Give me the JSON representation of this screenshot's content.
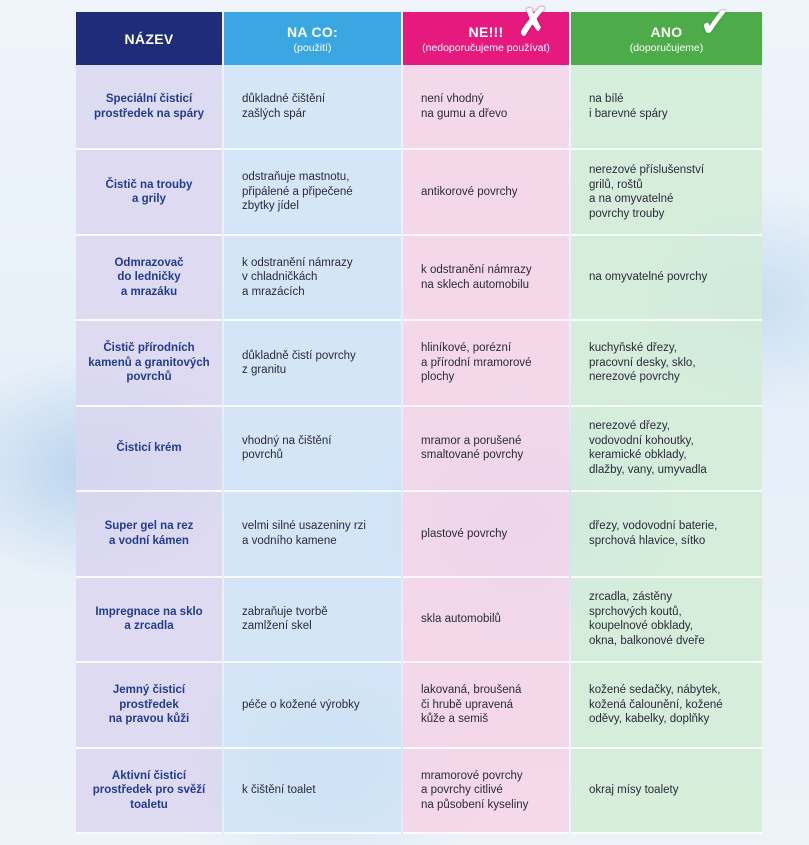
{
  "header": {
    "name": "NÁZEV",
    "use_title": "NA CO:",
    "use_sub": "(použití)",
    "no_title": "NE!!!",
    "no_sub": "(nedoporučujeme používat)",
    "yes_title": "ANO",
    "yes_sub": "(doporučujeme)",
    "no_icon": "cross-mark-icon",
    "yes_icon": "check-mark-icon"
  },
  "colors": {
    "name_header": "#1f2d78",
    "use_header": "#3aa6e2",
    "no_header": "#e5197e",
    "yes_header": "#4dab4a"
  },
  "rows": [
    {
      "name": "Speciální čisticí\nprostředek na spáry",
      "use": "důkladné čištění\nzašlých spár",
      "no": "není vhodný\nna gumu a dřevo",
      "yes": "na bílé\ni barevné spáry"
    },
    {
      "name": "Čistič na trouby\na grily",
      "use": "odstraňuje mastnotu,\npřipálené a připečené\nzbytky jídel",
      "no": "antikorové povrchy",
      "yes": "nerezové příslušenství\ngrilů, roštů\na na omyvatelné\npovrchy trouby"
    },
    {
      "name": "Odmrazovač\ndo ledničky\na mrazáku",
      "use": "k odstranění námrazy\nv chladničkách\na mrazácích",
      "no": "k odstranění námrazy\nna sklech automobilu",
      "yes": "na omyvatelné povrchy"
    },
    {
      "name": "Čistič přírodních\nkamenů a granitových\npovrchů",
      "use": "důkladně čistí povrchy\nz granitu",
      "no": "hliníkové, porézní\na přírodní mramorové\nplochy",
      "yes": "kuchyňské dřezy,\npracovní desky, sklo,\nnerezové povrchy"
    },
    {
      "name": "Čisticí krém",
      "use": "vhodný na čištění\npovrchů",
      "no": "mramor a porušené\nsmaltované povrchy",
      "yes": "nerezové dřezy,\nvodovodní kohoutky,\nkeramické obklady,\ndlažby, vany, umyvadla"
    },
    {
      "name": "Super gel na rez\na vodní kámen",
      "use": "velmi silné usazeniny rzi\na vodního kamene",
      "no": "plastové povrchy",
      "yes": "dřezy, vodovodní baterie,\nsprchová hlavice, sítko"
    },
    {
      "name": "Impregnace na sklo\na zrcadla",
      "use": "zabraňuje tvorbě\nzamlžení skel",
      "no": "skla automobilů",
      "yes": "zrcadla, zástěny\nsprchových koutů,\nkoupelnové obklady,\nokna, balkonové dveře"
    },
    {
      "name": "Jemný čisticí\nprostředek\nna pravou kůži",
      "use": "péče o kožené výrobky",
      "no": "lakovaná, broušená\nči hrubě upravená\nkůže a semiš",
      "yes": "kožené sedačky, nábytek,\nkožená čalounění, kožené\noděvy, kabelky, doplňky"
    },
    {
      "name": "Aktivní čisticí\nprostředek pro svěží\ntoaletu",
      "use": "k čištění toalet",
      "no": "mramorové povrchy\na povrchy citlivé\nna působení kyseliny",
      "yes": "okraj mísy toalety"
    }
  ]
}
